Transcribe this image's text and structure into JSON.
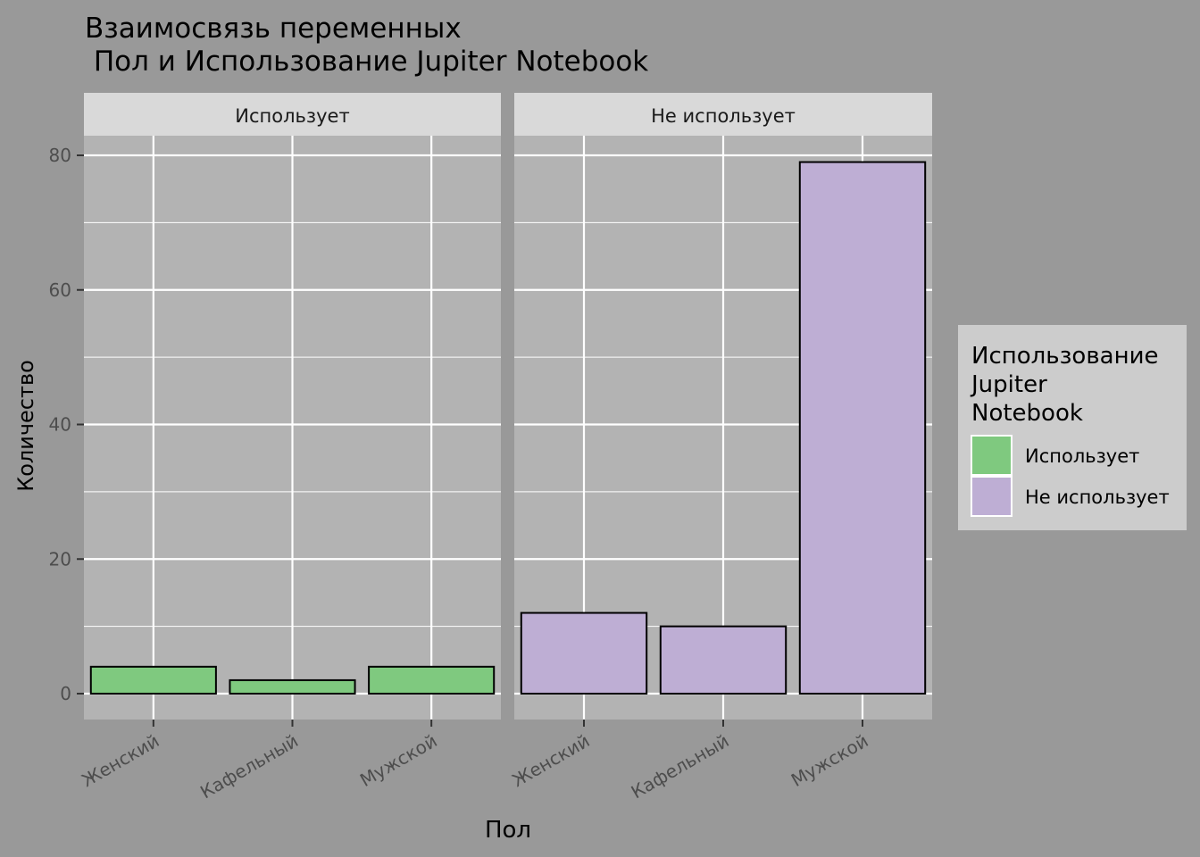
{
  "chart_data": {
    "type": "bar",
    "title_line1": "Взаимосвязь переменных",
    "title_line2": " Пол и Использование Jupiter Notebook",
    "xlabel": "Пол",
    "ylabel": "Количество",
    "ylim": [
      0,
      84
    ],
    "yticks": [
      0,
      20,
      40,
      60,
      80
    ],
    "categories": [
      "Женский",
      "Кафельный",
      "Мужской"
    ],
    "facets": [
      {
        "name": "Использует",
        "color": "#7fc97f",
        "values": [
          4,
          2,
          4
        ]
      },
      {
        "name": "Не использует",
        "color": "#beaed4",
        "values": [
          12,
          10,
          79
        ]
      }
    ],
    "legend": {
      "title_lines": [
        "Использование",
        "Jupiter",
        "Notebook"
      ],
      "entries": [
        {
          "label": "Использует",
          "color": "#7fc97f"
        },
        {
          "label": "Не использует",
          "color": "#beaed4"
        }
      ],
      "placement": "right"
    },
    "grid": true,
    "colors": {
      "background": "#999999",
      "panel": "#b3b3b3",
      "strip": "#d9d9d9",
      "legend_bg": "#cccccc",
      "grid": "#ffffff",
      "bar_outline": "#000000"
    }
  }
}
